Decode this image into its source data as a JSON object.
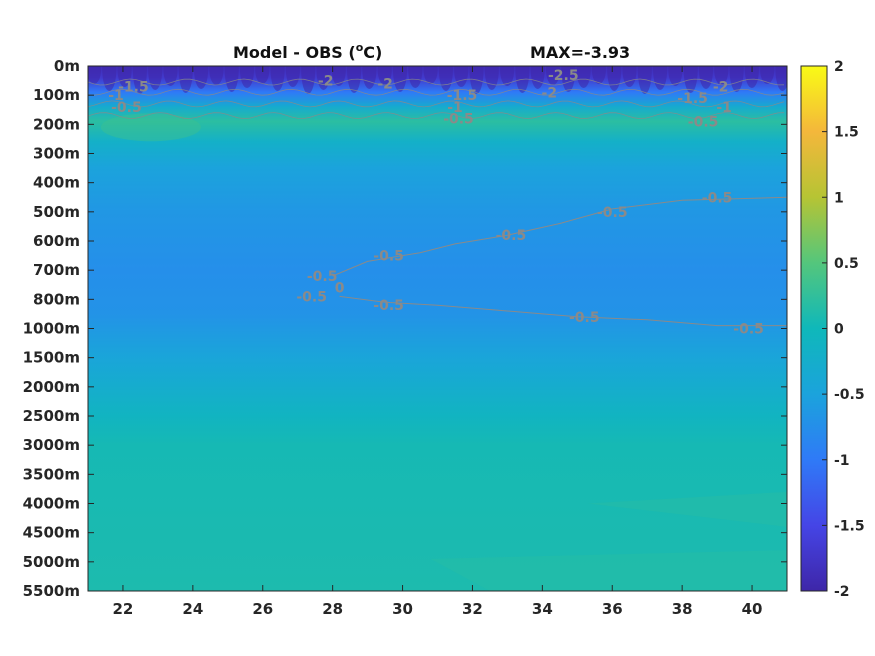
{
  "chart_data": {
    "type": "heatmap",
    "title": "Model - OBS (",
    "title_unit_sup": "o",
    "title_unit": "C)",
    "max_label": "MAX=-3.93",
    "x": {
      "min": 21,
      "max": 41,
      "ticks": [
        22,
        24,
        26,
        28,
        30,
        32,
        34,
        36,
        38,
        40
      ]
    },
    "y_levels": [
      "0m",
      "100m",
      "200m",
      "300m",
      "400m",
      "500m",
      "600m",
      "700m",
      "800m",
      "1000m",
      "1500m",
      "2000m",
      "2500m",
      "3000m",
      "3500m",
      "4000m",
      "4500m",
      "5000m",
      "5500m"
    ],
    "colorbar": {
      "min": -2,
      "max": 2,
      "ticks": [
        2,
        1.5,
        1,
        0.5,
        0,
        -0.5,
        -1,
        -1.5,
        -2
      ]
    },
    "field_bands": [
      {
        "depth_index": 0,
        "value": -1.9
      },
      {
        "depth_index": 0.4,
        "value": -1.7
      },
      {
        "depth_index": 0.9,
        "value": -1.0
      },
      {
        "depth_index": 1.4,
        "value": -0.3
      },
      {
        "depth_index": 1.9,
        "value": 0.2
      },
      {
        "depth_index": 2.6,
        "value": -0.2
      },
      {
        "depth_index": 3.5,
        "value": -0.5
      },
      {
        "depth_index": 5,
        "value": -0.65
      },
      {
        "depth_index": 7,
        "value": -0.75
      },
      {
        "depth_index": 8.5,
        "value": -0.7
      },
      {
        "depth_index": 10,
        "value": -0.45
      },
      {
        "depth_index": 11.2,
        "value": -0.25
      },
      {
        "depth_index": 12,
        "value": -0.1
      },
      {
        "depth_index": 13,
        "value": 0.05
      },
      {
        "depth_index": 18,
        "value": 0.1
      }
    ],
    "contour_labels": [
      {
        "text": "-1.5",
        "x": 22.3,
        "y": 0.7
      },
      {
        "text": "-1",
        "x": 21.8,
        "y": 1.0
      },
      {
        "text": "-0.5",
        "x": 22.1,
        "y": 1.4
      },
      {
        "text": "-2",
        "x": 27.8,
        "y": 0.5
      },
      {
        "text": "-2",
        "x": 29.5,
        "y": 0.6
      },
      {
        "text": "-1.5",
        "x": 31.7,
        "y": 1.0
      },
      {
        "text": "-1",
        "x": 31.5,
        "y": 1.4
      },
      {
        "text": "-0.5",
        "x": 31.6,
        "y": 1.8
      },
      {
        "text": "-2.5",
        "x": 34.6,
        "y": 0.3
      },
      {
        "text": "-2",
        "x": 34.2,
        "y": 0.9
      },
      {
        "text": "-1.5",
        "x": 38.3,
        "y": 1.1
      },
      {
        "text": "-2",
        "x": 39.1,
        "y": 0.7
      },
      {
        "text": "-1",
        "x": 39.2,
        "y": 1.4
      },
      {
        "text": "-0.5",
        "x": 38.6,
        "y": 1.9
      },
      {
        "text": "-0.5",
        "x": 29.6,
        "y": 6.5
      },
      {
        "text": "-0.5",
        "x": 33.1,
        "y": 5.8
      },
      {
        "text": "-0.5",
        "x": 36.0,
        "y": 5.0
      },
      {
        "text": "-0.5",
        "x": 39.0,
        "y": 4.5
      },
      {
        "text": "-0.5",
        "x": 29.6,
        "y": 8.2
      },
      {
        "text": "-0.5",
        "x": 35.2,
        "y": 8.6
      },
      {
        "text": "-0.5",
        "x": 39.9,
        "y": 9.0
      },
      {
        "text": "-0.5",
        "x": 27.7,
        "y": 7.2
      },
      {
        "text": "0",
        "x": 28.2,
        "y": 7.6
      },
      {
        "text": "-0.5",
        "x": 27.4,
        "y": 7.9
      }
    ],
    "contour_lines": [
      {
        "points": [
          [
            28.0,
            7.2
          ],
          [
            29.0,
            6.7
          ],
          [
            30.5,
            6.4
          ],
          [
            31.5,
            6.1
          ],
          [
            33.0,
            5.8
          ],
          [
            34.5,
            5.4
          ],
          [
            36.0,
            4.9
          ],
          [
            38.0,
            4.6
          ],
          [
            41.0,
            4.5
          ]
        ]
      },
      {
        "points": [
          [
            28.2,
            7.9
          ],
          [
            29.5,
            8.1
          ],
          [
            31.0,
            8.2
          ],
          [
            33.0,
            8.4
          ],
          [
            35.0,
            8.6
          ],
          [
            37.0,
            8.7
          ],
          [
            39.0,
            8.9
          ],
          [
            41.0,
            8.9
          ]
        ]
      }
    ]
  }
}
